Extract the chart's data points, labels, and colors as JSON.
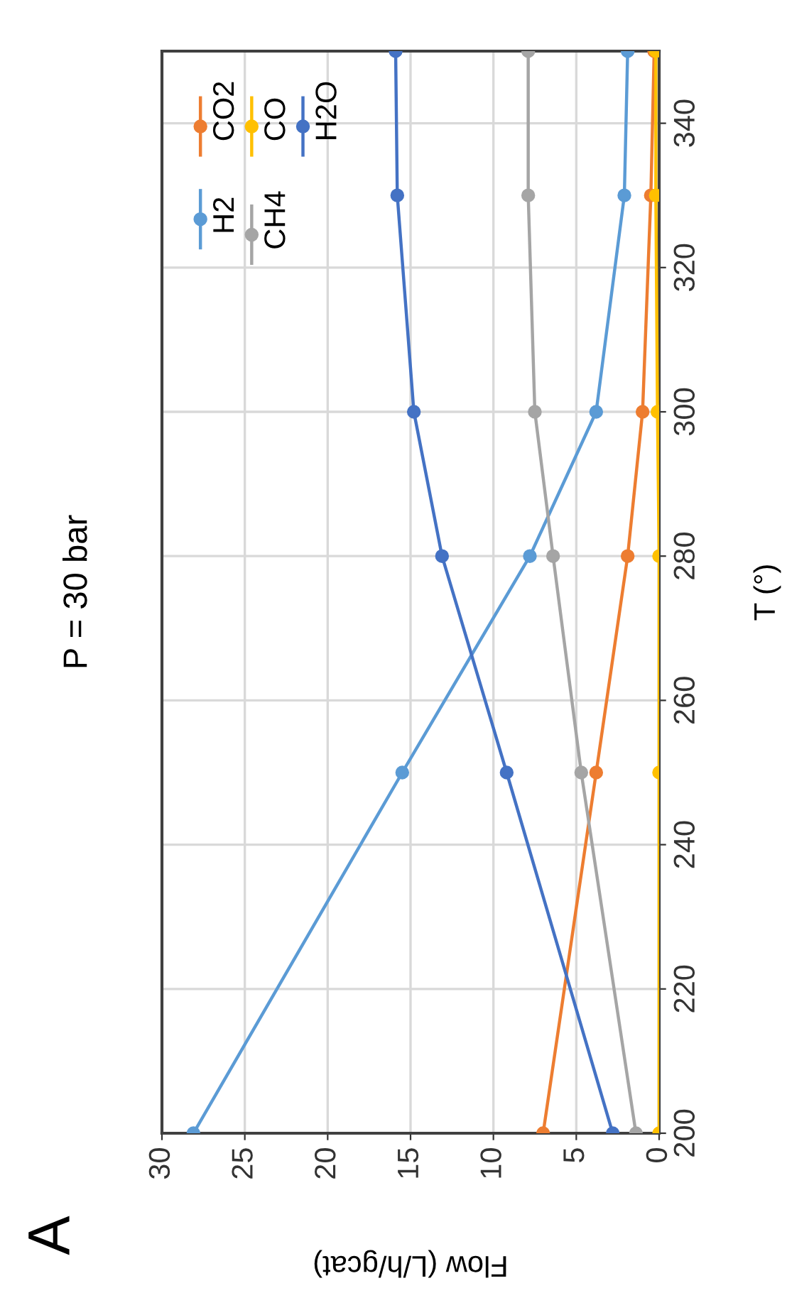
{
  "chart_data": {
    "type": "line",
    "title": "P = 30 bar",
    "xlabel": "Flow (L/h/gcat)",
    "ylabel": "T (°)",
    "annotations": [
      "A"
    ],
    "series": [
      {
        "name": "H2",
        "color": "#5b9bd5",
        "x": [
          28.1,
          15.5,
          7.8,
          3.8,
          2.1,
          1.9
        ],
        "values": [
          200,
          250,
          280,
          300,
          330,
          350
        ]
      },
      {
        "name": "CO2",
        "color": "#ed7d31",
        "x": [
          7.0,
          3.8,
          1.9,
          1.0,
          0.5,
          0.3
        ],
        "values": [
          200,
          250,
          280,
          300,
          330,
          350
        ]
      },
      {
        "name": "CH4",
        "color": "#a5a5a5",
        "x": [
          1.4,
          4.7,
          6.4,
          7.5,
          7.9,
          7.9
        ],
        "values": [
          200,
          250,
          280,
          300,
          330,
          350
        ]
      },
      {
        "name": "CO",
        "color": "#ffc000",
        "x": [
          0,
          0,
          0,
          0.1,
          0.2,
          0.2
        ],
        "values": [
          200,
          250,
          280,
          300,
          330,
          350
        ]
      },
      {
        "name": "H2O",
        "color": "#4472c4",
        "x": [
          2.8,
          9.2,
          13.1,
          14.8,
          15.8,
          15.9
        ],
        "values": [
          200,
          250,
          280,
          300,
          330,
          350
        ]
      }
    ],
    "xlim": [
      30,
      0
    ],
    "xticks": [
      30,
      25,
      20,
      15,
      10,
      5,
      0
    ],
    "ylim": [
      200,
      350
    ],
    "yticks": [
      200,
      220,
      240,
      260,
      280,
      300,
      320,
      340
    ],
    "grid": true,
    "legend": "top left",
    "marker": "circle",
    "line_style": "solid"
  }
}
